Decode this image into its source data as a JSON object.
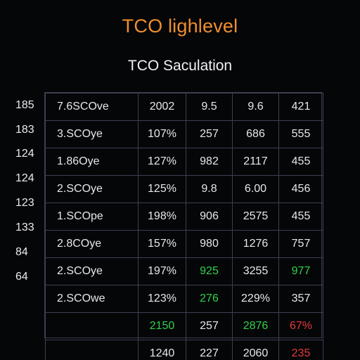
{
  "header": {
    "title": "TCO lighlevel",
    "subtitle": "TCO Saculation",
    "accent_color": "#ef8f2d"
  },
  "row_indices": [
    "185",
    "183",
    "124",
    "124",
    "123",
    "133",
    "84",
    "64"
  ],
  "table": {
    "rows": [
      [
        {
          "text": "7.6SCOve"
        },
        {
          "text": "2002"
        },
        {
          "text": "9.5"
        },
        {
          "text": "9.6"
        },
        {
          "text": "421"
        }
      ],
      [
        {
          "text": "3.SCOye"
        },
        {
          "text": "107%"
        },
        {
          "text": "257"
        },
        {
          "text": "686"
        },
        {
          "text": "555"
        }
      ],
      [
        {
          "text": "1.86Oye"
        },
        {
          "text": "127%"
        },
        {
          "text": "982"
        },
        {
          "text": "2117"
        },
        {
          "text": "455"
        }
      ],
      [
        {
          "text": "2.SCOye"
        },
        {
          "text": "125%"
        },
        {
          "text": "9.8"
        },
        {
          "text": "6.00"
        },
        {
          "text": "456"
        }
      ],
      [
        {
          "text": "1.SCOpe"
        },
        {
          "text": "198%"
        },
        {
          "text": "906"
        },
        {
          "text": "2575"
        },
        {
          "text": "455"
        }
      ],
      [
        {
          "text": "2.8COye"
        },
        {
          "text": "157%"
        },
        {
          "text": "980"
        },
        {
          "text": "1276"
        },
        {
          "text": "757"
        }
      ],
      [
        {
          "text": "2.SCOye"
        },
        {
          "text": "197%"
        },
        {
          "text": "925",
          "color": "green"
        },
        {
          "text": "3255"
        },
        {
          "text": "977",
          "color": "green"
        }
      ],
      [
        {
          "text": "2.SCOwe"
        },
        {
          "text": "123%"
        },
        {
          "text": "276",
          "color": "green"
        },
        {
          "text": "229%"
        },
        {
          "text": "357"
        }
      ],
      [
        {
          "text": ""
        },
        {
          "text": "2150",
          "color": "green"
        },
        {
          "text": "257"
        },
        {
          "text": "2876",
          "color": "green"
        },
        {
          "text": "67%",
          "color": "red"
        }
      ],
      [
        {
          "text": ""
        },
        {
          "text": "1240"
        },
        {
          "text": "227"
        },
        {
          "text": "2060"
        },
        {
          "text": "235",
          "color": "red"
        }
      ]
    ],
    "status_colors": {
      "green": "#2fd24a",
      "red": "#e43a3a"
    }
  }
}
